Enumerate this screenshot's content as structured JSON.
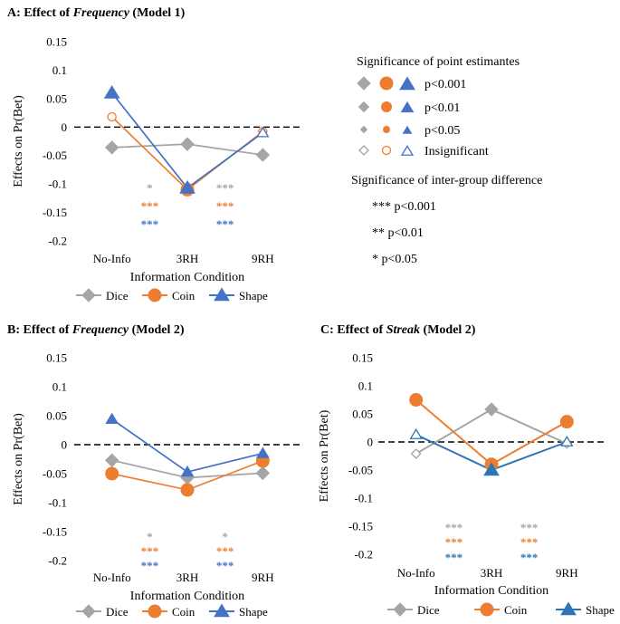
{
  "colors": {
    "Dice": "#a5a5a5",
    "Coin": "#ed7d31",
    "Shape": "#4472c4",
    "ShapeC": "#2e75b6"
  },
  "chart_data": [
    {
      "id": "A",
      "type": "line",
      "title_prefix": "A: Effect of ",
      "title_emph": "Frequency",
      "title_suffix": " (Model 1)",
      "categories": [
        "No-Info",
        "3RH",
        "9RH"
      ],
      "xlabel": "Information Condition",
      "ylabel": "Effects on Pr(Bet)",
      "ylim": [
        -0.2,
        0.15
      ],
      "yticks": [
        "0.15",
        "0.1",
        "0.05",
        "0",
        "-0.05",
        "-0.1",
        "-0.15",
        "-0.2"
      ],
      "series": [
        {
          "name": "Dice",
          "values": [
            -0.036,
            -0.03,
            -0.049
          ],
          "sig": [
            "hi",
            "hi",
            "hi"
          ]
        },
        {
          "name": "Coin",
          "values": [
            0.018,
            -0.11,
            -0.008
          ],
          "sig": [
            "ns",
            "hi",
            "ns"
          ]
        },
        {
          "name": "Shape",
          "values": [
            0.06,
            -0.107,
            -0.01
          ],
          "sig": [
            "hi",
            "hi",
            "ns"
          ]
        }
      ],
      "group_sig": [
        {
          "Dice": "*",
          "Coin": "***",
          "Shape": "***"
        },
        {
          "Dice": "***",
          "Coin": "***",
          "Shape": "***"
        }
      ]
    },
    {
      "id": "B",
      "type": "line",
      "title_prefix": "B: Effect of ",
      "title_emph": "Frequency",
      "title_suffix": " (Model 2)",
      "categories": [
        "No-Info",
        "3RH",
        "9RH"
      ],
      "xlabel": "Information Condition",
      "ylabel": "Effects on Pr(Bet)",
      "ylim": [
        -0.2,
        0.15
      ],
      "yticks": [
        "0.15",
        "0.1",
        "0.05",
        "0",
        "-0.05",
        "-0.1",
        "-0.15",
        "-0.2"
      ],
      "series": [
        {
          "name": "Dice",
          "values": [
            -0.027,
            -0.057,
            -0.049
          ],
          "sig": [
            "hi",
            "hi",
            "hi"
          ]
        },
        {
          "name": "Coin",
          "values": [
            -0.05,
            -0.078,
            -0.028
          ],
          "sig": [
            "hi",
            "hi",
            "hi"
          ]
        },
        {
          "name": "Shape",
          "values": [
            0.044,
            -0.047,
            -0.015
          ],
          "sig": [
            "p01",
            "p01",
            "p01"
          ]
        }
      ],
      "group_sig": [
        {
          "Dice": "*",
          "Coin": "***",
          "Shape": "***"
        },
        {
          "Dice": "*",
          "Coin": "***",
          "Shape": "***"
        }
      ]
    },
    {
      "id": "C",
      "type": "line",
      "title_prefix": "C: Effect of ",
      "title_emph": "Streak",
      "title_suffix": " (Model 2)",
      "categories": [
        "No-Info",
        "3RH",
        "9RH"
      ],
      "xlabel": "Information Condition",
      "ylabel": "Effects on Pr(Bet)",
      "ylim": [
        -0.2,
        0.15
      ],
      "yticks": [
        "0.15",
        "0.1",
        "0.05",
        "0",
        "-0.05",
        "-0.1",
        "-0.15",
        "-0.2"
      ],
      "series": [
        {
          "name": "Dice",
          "values": [
            -0.021,
            0.058,
            -0.003
          ],
          "sig": [
            "ns",
            "hi",
            "ns"
          ]
        },
        {
          "name": "Coin",
          "values": [
            0.075,
            -0.04,
            0.036
          ],
          "sig": [
            "hi",
            "hi",
            "hi"
          ]
        },
        {
          "name": "Shape",
          "values": [
            0.013,
            -0.05,
            0.0
          ],
          "sig": [
            "ns",
            "hi",
            "ns"
          ]
        }
      ],
      "group_sig": [
        {
          "Dice": "***",
          "Coin": "***",
          "Shape": "***"
        },
        {
          "Dice": "***",
          "Coin": "***",
          "Shape": "***"
        }
      ]
    }
  ],
  "sig_key": {
    "point_title": "Significance of point estimantes",
    "rows": [
      {
        "level": "hi",
        "label": "p<0.001"
      },
      {
        "level": "p01",
        "label": "p<0.01"
      },
      {
        "level": "p05",
        "label": "p<0.05"
      },
      {
        "level": "ns",
        "label": "Insignificant"
      }
    ],
    "group_title": "Significance of inter-group difference",
    "group_rows": [
      "*** p<0.001",
      "** p<0.01",
      "* p<0.05"
    ]
  }
}
